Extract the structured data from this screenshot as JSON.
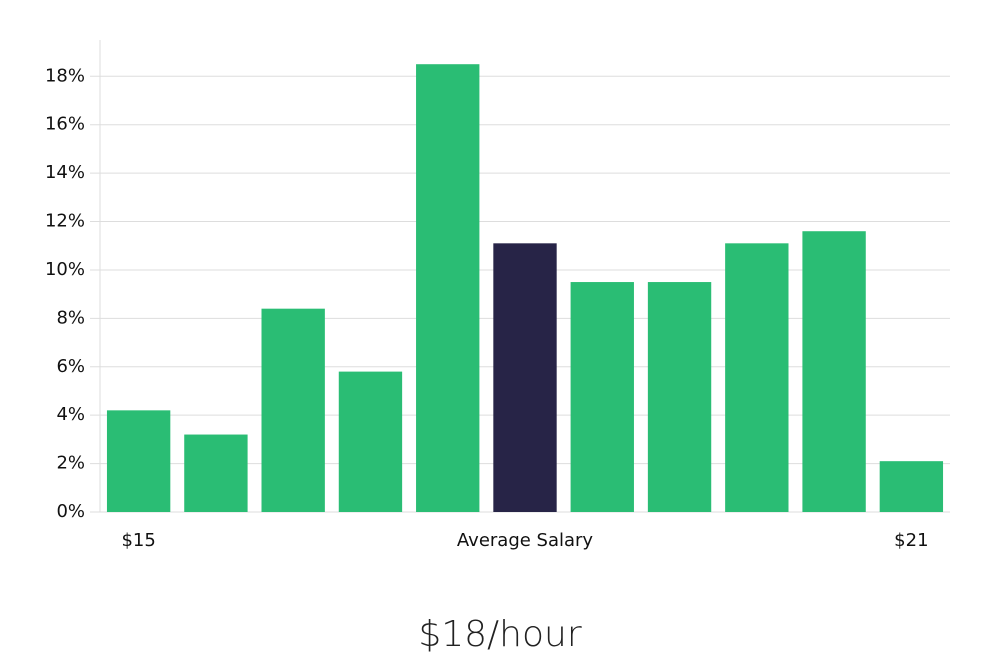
{
  "chart_data": {
    "type": "bar",
    "categories": [
      "$15",
      null,
      null,
      null,
      null,
      "Average Salary",
      null,
      null,
      null,
      null,
      "$21"
    ],
    "values": [
      4.2,
      3.2,
      8.4,
      5.8,
      18.5,
      11.1,
      9.5,
      9.5,
      11.1,
      11.6,
      2.1
    ],
    "colors": [
      "#2abd74",
      "#2abd74",
      "#2abd74",
      "#2abd74",
      "#2abd74",
      "#272447",
      "#2abd74",
      "#2abd74",
      "#2abd74",
      "#2abd74",
      "#2abd74"
    ],
    "ylim": [
      0,
      19.5
    ],
    "yticks": [
      {
        "value": 0,
        "label": "0%"
      },
      {
        "value": 2,
        "label": "2%"
      },
      {
        "value": 4,
        "label": "4%"
      },
      {
        "value": 6,
        "label": "6%"
      },
      {
        "value": 8,
        "label": "8%"
      },
      {
        "value": 10,
        "label": "10%"
      },
      {
        "value": 12,
        "label": "12%"
      },
      {
        "value": 14,
        "label": "14%"
      },
      {
        "value": 16,
        "label": "16%"
      },
      {
        "value": 18,
        "label": "18%"
      }
    ],
    "grid": true,
    "caption": "$18/hour"
  }
}
